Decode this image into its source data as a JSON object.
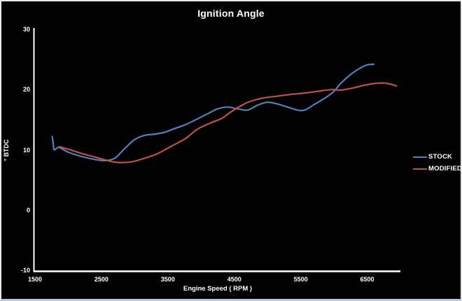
{
  "window": {
    "background": "#000000",
    "frame_border": "#e9e9e9",
    "bottom_strip": "#b9cade",
    "text_color": "#ffffff"
  },
  "chart_data": {
    "type": "line",
    "title": "Ignition Angle",
    "xlabel": "Engine Speed ( RPM )",
    "ylabel": "° BTDC",
    "xlim": [
      1500,
      7000
    ],
    "ylim": [
      -10,
      30
    ],
    "x_ticks": [
      "1500",
      "2500",
      "3500",
      "4500",
      "5500",
      "6500"
    ],
    "x_tick_values": [
      1500,
      2500,
      3500,
      4500,
      5500,
      6500
    ],
    "y_ticks": [
      "30",
      "20",
      "10",
      "0",
      "-10"
    ],
    "y_tick_values": [
      30,
      20,
      10,
      0,
      -10
    ],
    "grid": false,
    "legend_position": "right",
    "axis_color": "#ffffff",
    "series": [
      {
        "name": "STOCK",
        "color": "#4F81BD",
        "points": [
          [
            1760,
            12.2
          ],
          [
            1775,
            11.0
          ],
          [
            1790,
            10.0
          ],
          [
            1860,
            10.4
          ],
          [
            2000,
            9.6
          ],
          [
            2200,
            8.9
          ],
          [
            2400,
            8.4
          ],
          [
            2550,
            8.2
          ],
          [
            2700,
            8.6
          ],
          [
            2850,
            10.2
          ],
          [
            3000,
            11.7
          ],
          [
            3150,
            12.4
          ],
          [
            3300,
            12.6
          ],
          [
            3450,
            12.9
          ],
          [
            3570,
            13.4
          ],
          [
            3770,
            14.2
          ],
          [
            3940,
            15.1
          ],
          [
            4100,
            16.0
          ],
          [
            4250,
            16.8
          ],
          [
            4400,
            17.1
          ],
          [
            4550,
            16.8
          ],
          [
            4700,
            16.6
          ],
          [
            4850,
            17.4
          ],
          [
            5000,
            17.9
          ],
          [
            5150,
            17.6
          ],
          [
            5300,
            17.1
          ],
          [
            5450,
            16.6
          ],
          [
            5560,
            16.6
          ],
          [
            5700,
            17.5
          ],
          [
            5850,
            18.5
          ],
          [
            5990,
            19.6
          ],
          [
            6100,
            21.0
          ],
          [
            6250,
            22.5
          ],
          [
            6400,
            23.6
          ],
          [
            6500,
            24.1
          ],
          [
            6600,
            24.2
          ]
        ]
      },
      {
        "name": "MODIFIED",
        "color": "#C0504D",
        "points": [
          [
            1870,
            10.5
          ],
          [
            2000,
            10.1
          ],
          [
            2200,
            9.4
          ],
          [
            2400,
            8.8
          ],
          [
            2600,
            8.2
          ],
          [
            2750,
            7.9
          ],
          [
            2950,
            8.0
          ],
          [
            3150,
            8.6
          ],
          [
            3350,
            9.4
          ],
          [
            3570,
            10.7
          ],
          [
            3770,
            11.9
          ],
          [
            3940,
            13.4
          ],
          [
            4150,
            14.5
          ],
          [
            4310,
            15.2
          ],
          [
            4450,
            16.3
          ],
          [
            4600,
            17.3
          ],
          [
            4730,
            18.0
          ],
          [
            4940,
            18.6
          ],
          [
            5150,
            18.9
          ],
          [
            5350,
            19.2
          ],
          [
            5550,
            19.4
          ],
          [
            5750,
            19.7
          ],
          [
            5970,
            20.0
          ],
          [
            6100,
            19.9
          ],
          [
            6300,
            20.3
          ],
          [
            6450,
            20.7
          ],
          [
            6600,
            21.0
          ],
          [
            6750,
            21.1
          ],
          [
            6850,
            20.9
          ],
          [
            6940,
            20.6
          ]
        ]
      }
    ]
  }
}
